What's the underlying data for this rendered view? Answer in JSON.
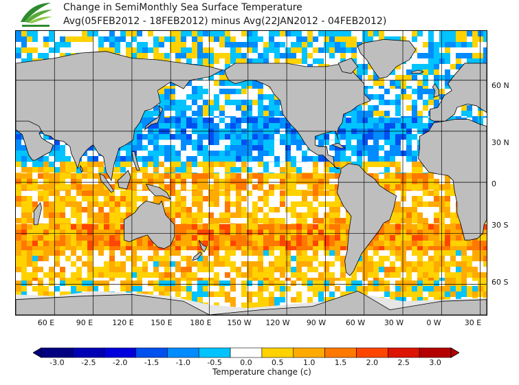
{
  "header": {
    "title_line1": "Change in SemiMonthly Sea Surface Temperature",
    "title_line2": "Avg(05FEB2012 - 18FEB2012) minus Avg(22JAN2012 - 04FEB2012)"
  },
  "colors": {
    "land": "#bebebe",
    "coast": "#000000",
    "grid": "#000000",
    "ice": "#e6e6e6"
  },
  "map": {
    "lat_labels": [
      "60 N",
      "30 N",
      "0",
      "30 S",
      "60 S"
    ],
    "lat_values": [
      60,
      30,
      0,
      -30,
      -60
    ],
    "lon_labels": [
      "60 E",
      "90 E",
      "120 E",
      "150 E",
      "180 E",
      "150 W",
      "120 W",
      "90 W",
      "60 W",
      "30 W",
      "0 W",
      "30 E"
    ],
    "lon_values": [
      60,
      90,
      120,
      150,
      180,
      210,
      240,
      270,
      300,
      330,
      360,
      390
    ],
    "lon_range": [
      30,
      395
    ],
    "lat_range": [
      -78,
      89
    ],
    "anomaly_bands": [
      {
        "lat": [
          55,
          89
        ],
        "anom": -0.2
      },
      {
        "lat": [
          38,
          55
        ],
        "anom": -0.4
      },
      {
        "lat": [
          25,
          38
        ],
        "anom": -0.9
      },
      {
        "lat": [
          12,
          25
        ],
        "anom": -0.6
      },
      {
        "lat": [
          5,
          12
        ],
        "anom": 0.2
      },
      {
        "lat": [
          -5,
          5
        ],
        "anom": 0.8
      },
      {
        "lat": [
          -25,
          -5
        ],
        "anom": 0.6
      },
      {
        "lat": [
          -40,
          -25
        ],
        "anom": 1.2
      },
      {
        "lat": [
          -58,
          -40
        ],
        "anom": 0.5
      },
      {
        "lat": [
          -78,
          -58
        ],
        "anom": 0.3
      }
    ]
  },
  "colorbar": {
    "label": "Temperature change (c)",
    "ticks": [
      "-3.0",
      "-2.5",
      "-2.0",
      "-1.5",
      "-1.0",
      "-0.5",
      "0.0",
      "0.5",
      "1.0",
      "1.5",
      "2.0",
      "2.5",
      "3.0"
    ],
    "colors": [
      "#000080",
      "#0000b4",
      "#0000dc",
      "#0050f0",
      "#008cff",
      "#00c3ff",
      "#ffffff",
      "#ffd200",
      "#ffaa00",
      "#ff7800",
      "#ff4600",
      "#dc1400",
      "#b40000"
    ]
  }
}
